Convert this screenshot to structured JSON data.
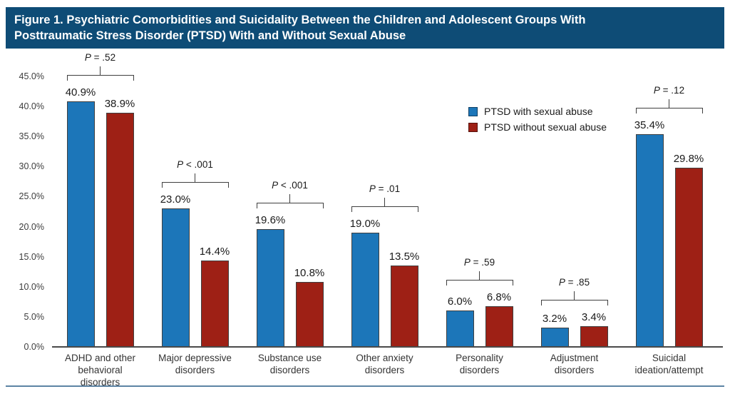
{
  "figure": {
    "title_line1": "Figure 1. Psychiatric Comorbidities and Suicidality Between the Children and Adolescent Groups With",
    "title_line2": "Posttraumatic Stress Disorder (PTSD) With and Without Sexual Abuse"
  },
  "legend": {
    "items": [
      {
        "label": "PTSD with sexual abuse",
        "color": "#1c76b9"
      },
      {
        "label": "PTSD without sexual abuse",
        "color": "#9e2015"
      }
    ]
  },
  "colors": {
    "title_bar_background": "#0e4c76",
    "title_text": "#ffffff",
    "bar_with_abuse": "#1c76b9",
    "bar_without_abuse": "#9e2015",
    "bar_border": "#3f3f3f",
    "axis_line": "#4a4a4a",
    "bottom_rule": "#5d84a4"
  },
  "chart_data": {
    "type": "bar",
    "categories": [
      "ADHD and other\nbehavioral\ndisorders",
      "Major depressive\ndisorders",
      "Substance use\ndisorders",
      "Other anxiety\ndisorders",
      "Personality\ndisorders",
      "Adjustment\ndisorders",
      "Suicidal\nideation/attempt"
    ],
    "series": [
      {
        "name": "PTSD with sexual abuse",
        "color": "#1c76b9",
        "values": [
          40.9,
          23.0,
          19.6,
          19.0,
          6.0,
          3.2,
          35.4
        ]
      },
      {
        "name": "PTSD without sexual abuse",
        "color": "#9e2015",
        "values": [
          38.9,
          14.4,
          10.8,
          13.5,
          6.8,
          3.4,
          29.8
        ]
      }
    ],
    "value_labels": [
      [
        "40.9%",
        "23.0%",
        "19.6%",
        "19.0%",
        "6.0%",
        "3.2%",
        "35.4%"
      ],
      [
        "38.9%",
        "14.4%",
        "10.8%",
        "13.5%",
        "6.8%",
        "3.4%",
        "29.8%"
      ]
    ],
    "p_values": [
      "P = .52",
      "P < .001",
      "P < .001",
      "P = .01",
      "P = .59",
      "P = .85",
      "P = .12"
    ],
    "y_ticks": [
      "0.0%",
      "5.0%",
      "10.0%",
      "15.0%",
      "20.0%",
      "25.0%",
      "30.0%",
      "35.0%",
      "40.0%",
      "45.0%"
    ],
    "ylim": [
      0,
      45
    ],
    "grid": false,
    "legend_position": "upper-right-inside",
    "title": "Figure 1. Psychiatric Comorbidities and Suicidality Between the Children and Adolescent Groups With Posttraumatic Stress Disorder (PTSD) With and Without Sexual Abuse",
    "xlabel": "",
    "ylabel": ""
  }
}
